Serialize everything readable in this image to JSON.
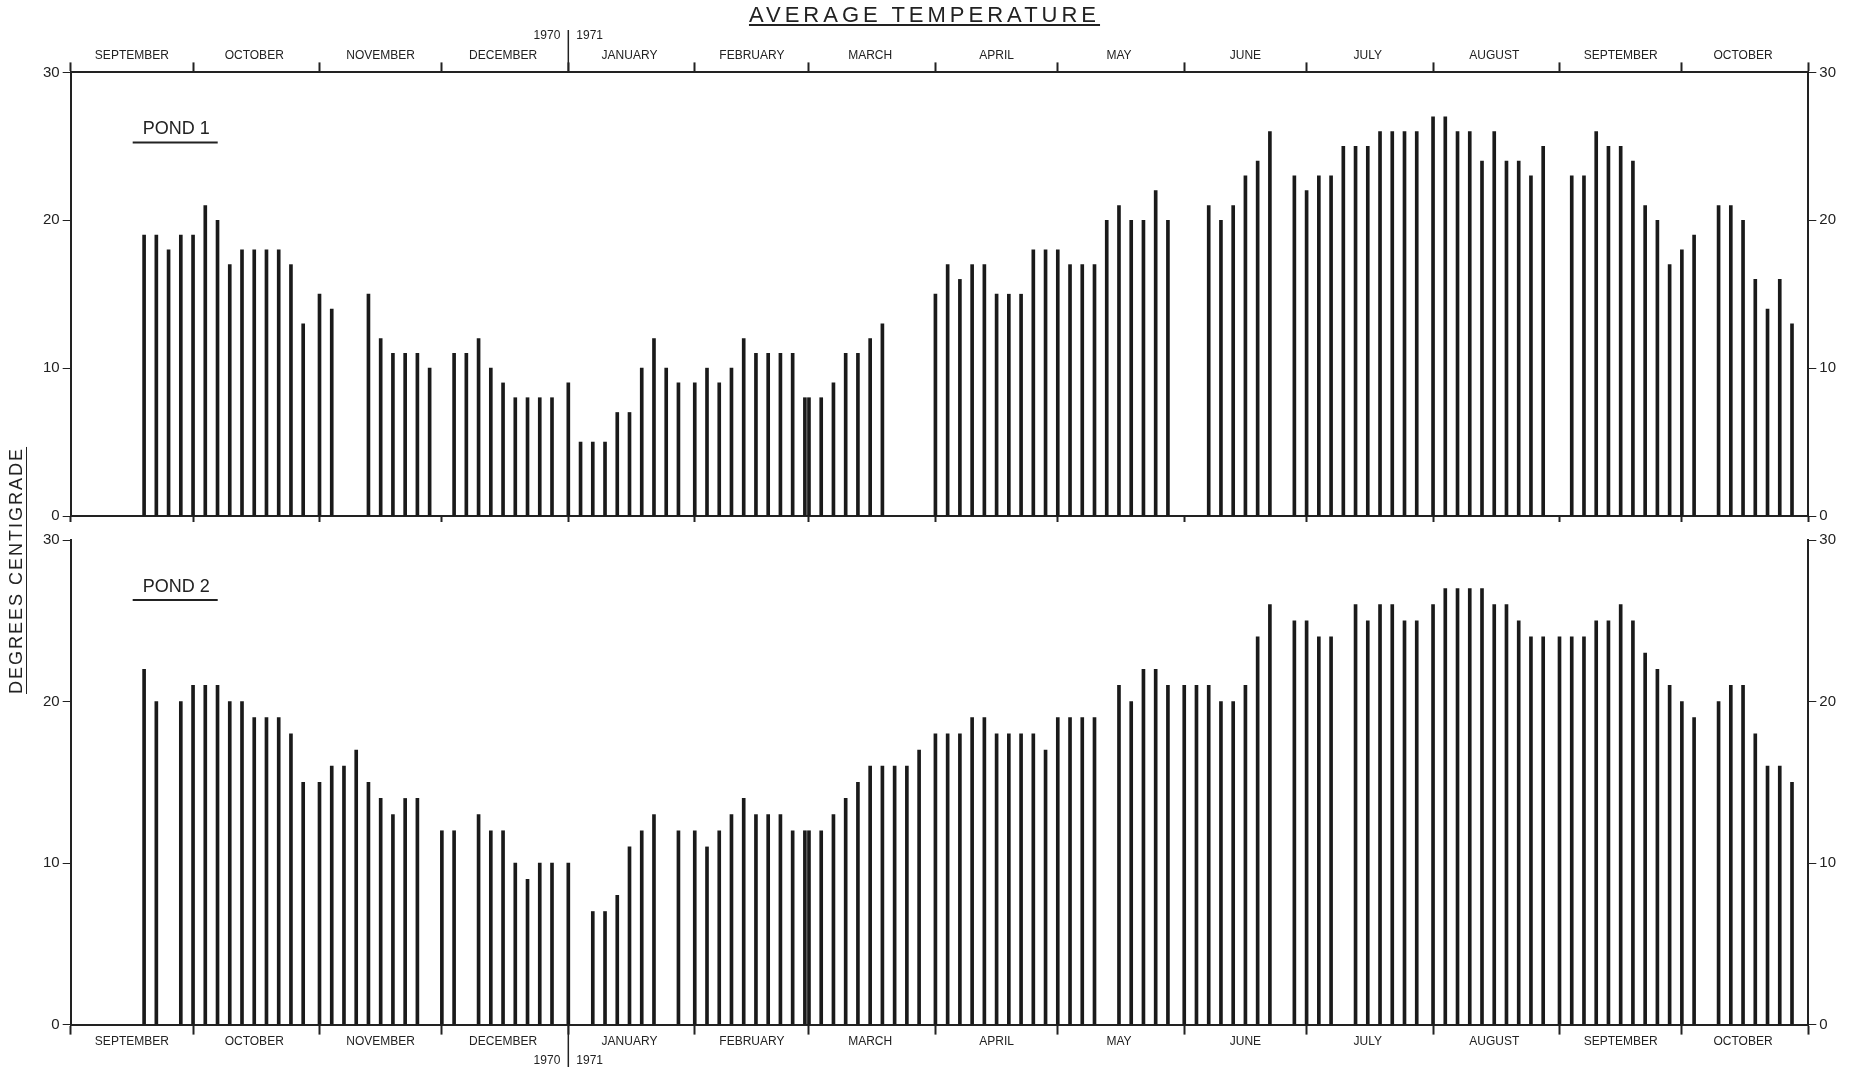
{
  "chart_data": [
    {
      "type": "bar",
      "title": "AVERAGE TEMPERATURE",
      "ylabel": "DEGREES CENTIGRADE",
      "subtitle": "POND 1",
      "x": [
        "1970-09-19",
        "1970-09-22",
        "1970-09-25",
        "1970-09-28",
        "1970-10-01",
        "1970-10-04",
        "1970-10-07",
        "1970-10-10",
        "1970-10-13",
        "1970-10-16",
        "1970-10-19",
        "1970-10-22",
        "1970-10-25",
        "1970-10-28",
        "1970-11-01",
        "1970-11-04",
        "1970-11-07",
        "1970-11-10",
        "1970-11-13",
        "1970-11-16",
        "1970-11-19",
        "1970-11-22",
        "1970-11-25",
        "1970-11-28",
        "1970-12-01",
        "1970-12-04",
        "1970-12-07",
        "1970-12-10",
        "1970-12-13",
        "1970-12-16",
        "1970-12-19",
        "1970-12-22",
        "1970-12-25",
        "1970-12-28",
        "1971-01-01",
        "1971-01-04",
        "1971-01-07",
        "1971-01-10",
        "1971-01-13",
        "1971-01-16",
        "1971-01-19",
        "1971-01-22",
        "1971-01-25",
        "1971-01-28",
        "1971-02-01",
        "1971-02-04",
        "1971-02-07",
        "1971-02-10",
        "1971-02-13",
        "1971-02-16",
        "1971-02-19",
        "1971-02-22",
        "1971-02-25",
        "1971-02-28",
        "1971-03-01",
        "1971-03-04",
        "1971-03-07",
        "1971-03-10",
        "1971-03-13",
        "1971-03-16",
        "1971-03-19",
        "1971-03-22",
        "1971-03-25",
        "1971-03-28",
        "1971-04-01",
        "1971-04-04",
        "1971-04-07",
        "1971-04-10",
        "1971-04-13",
        "1971-04-16",
        "1971-04-19",
        "1971-04-22",
        "1971-04-25",
        "1971-04-28",
        "1971-05-01",
        "1971-05-04",
        "1971-05-07",
        "1971-05-10",
        "1971-05-13",
        "1971-05-16",
        "1971-05-19",
        "1971-05-22",
        "1971-05-25",
        "1971-05-28",
        "1971-06-01",
        "1971-06-04",
        "1971-06-07",
        "1971-06-10",
        "1971-06-13",
        "1971-06-16",
        "1971-06-19",
        "1971-06-22",
        "1971-06-25",
        "1971-06-28",
        "1971-07-01",
        "1971-07-04",
        "1971-07-07",
        "1971-07-10",
        "1971-07-13",
        "1971-07-16",
        "1971-07-19",
        "1971-07-22",
        "1971-07-25",
        "1971-07-28",
        "1971-08-01",
        "1971-08-04",
        "1971-08-07",
        "1971-08-10",
        "1971-08-13",
        "1971-08-16",
        "1971-08-19",
        "1971-08-22",
        "1971-08-25",
        "1971-08-28",
        "1971-09-01",
        "1971-09-04",
        "1971-09-07",
        "1971-09-10",
        "1971-09-13",
        "1971-09-16",
        "1971-09-19",
        "1971-09-22",
        "1971-09-25",
        "1971-09-28",
        "1971-10-01",
        "1971-10-04",
        "1971-10-07",
        "1971-10-10",
        "1971-10-13",
        "1971-10-16",
        "1971-10-19",
        "1971-10-22",
        "1971-10-25",
        "1971-10-28"
      ],
      "xlim": [
        "1970-09-01",
        "1971-11-01"
      ],
      "xticks": [
        {
          "value": "1970-09-01",
          "label": null
        },
        {
          "value": "1970-09-16",
          "label": "SEPTEMBER"
        },
        {
          "value": "1970-10-01",
          "label": null
        },
        {
          "value": "1970-10-16",
          "label": "OCTOBER"
        },
        {
          "value": "1970-11-01",
          "label": null
        },
        {
          "value": "1970-11-16",
          "label": "NOVEMBER"
        },
        {
          "value": "1970-12-01",
          "label": null
        },
        {
          "value": "1970-12-16",
          "label": "DECEMBER"
        },
        {
          "value": "1971-01-01",
          "label": null
        },
        {
          "value": "1971-01-16",
          "label": "JANUARY"
        },
        {
          "value": "1971-02-01",
          "label": null
        },
        {
          "value": "1971-02-15",
          "label": "FEBRUARY"
        },
        {
          "value": "1971-03-01",
          "label": null
        },
        {
          "value": "1971-03-16",
          "label": "MARCH"
        },
        {
          "value": "1971-04-01",
          "label": null
        },
        {
          "value": "1971-04-16",
          "label": "APRIL"
        },
        {
          "value": "1971-05-01",
          "label": null
        },
        {
          "value": "1971-05-16",
          "label": "MAY"
        },
        {
          "value": "1971-06-01",
          "label": null
        },
        {
          "value": "1971-06-16",
          "label": "JUNE"
        },
        {
          "value": "1971-07-01",
          "label": null
        },
        {
          "value": "1971-07-16",
          "label": "JULY"
        },
        {
          "value": "1971-08-01",
          "label": null
        },
        {
          "value": "1971-08-16",
          "label": "AUGUST"
        },
        {
          "value": "1971-09-01",
          "label": null
        },
        {
          "value": "1971-09-16",
          "label": "SEPTEMBER"
        },
        {
          "value": "1971-10-01",
          "label": null
        },
        {
          "value": "1971-10-16",
          "label": "OCTOBER"
        },
        {
          "value": "1971-11-01",
          "label": null
        }
      ],
      "ylim": [
        0,
        30
      ],
      "yticks": [
        0,
        10,
        20,
        30
      ],
      "y2lim": [
        0,
        30
      ],
      "y2ticks": [
        0,
        10,
        20,
        30
      ],
      "annotations": [
        "1970",
        "1971"
      ],
      "series": [
        {
          "color": "#1a1a1a",
          "values": [
            19,
            19,
            18,
            19,
            19,
            21,
            20,
            17,
            18,
            18,
            18,
            18,
            17,
            13,
            15,
            14,
            null,
            null,
            15,
            12,
            11,
            11,
            11,
            10,
            null,
            11,
            11,
            12,
            10,
            9,
            8,
            8,
            8,
            8,
            9,
            5,
            5,
            5,
            7,
            7,
            10,
            12,
            10,
            9,
            9,
            10,
            9,
            10,
            12,
            11,
            11,
            11,
            11,
            8,
            8,
            8,
            9,
            11,
            11,
            12,
            13,
            null,
            null,
            null,
            15,
            17,
            16,
            17,
            17,
            15,
            15,
            15,
            18,
            18,
            18,
            17,
            17,
            17,
            20,
            21,
            20,
            20,
            22,
            20,
            null,
            null,
            21,
            20,
            21,
            23,
            24,
            26,
            null,
            23,
            22,
            23,
            23,
            25,
            25,
            25,
            26,
            26,
            26,
            26,
            27,
            27,
            26,
            26,
            24,
            26,
            24,
            24,
            23,
            25,
            null,
            23,
            23,
            26,
            25,
            25,
            24,
            21,
            20,
            17,
            18,
            19,
            null,
            21,
            21,
            20,
            16,
            14,
            16,
            13
          ]
        }
      ]
    },
    {
      "type": "bar",
      "subtitle": "POND 2",
      "x": [
        "1970-09-19",
        "1970-09-22",
        "1970-09-25",
        "1970-09-28",
        "1970-10-01",
        "1970-10-04",
        "1970-10-07",
        "1970-10-10",
        "1970-10-13",
        "1970-10-16",
        "1970-10-19",
        "1970-10-22",
        "1970-10-25",
        "1970-10-28",
        "1970-11-01",
        "1970-11-04",
        "1970-11-07",
        "1970-11-10",
        "1970-11-13",
        "1970-11-16",
        "1970-11-19",
        "1970-11-22",
        "1970-11-25",
        "1970-11-28",
        "1970-12-01",
        "1970-12-04",
        "1970-12-07",
        "1970-12-10",
        "1970-12-13",
        "1970-12-16",
        "1970-12-19",
        "1970-12-22",
        "1970-12-25",
        "1970-12-28",
        "1971-01-01",
        "1971-01-04",
        "1971-01-07",
        "1971-01-10",
        "1971-01-13",
        "1971-01-16",
        "1971-01-19",
        "1971-01-22",
        "1971-01-25",
        "1971-01-28",
        "1971-02-01",
        "1971-02-04",
        "1971-02-07",
        "1971-02-10",
        "1971-02-13",
        "1971-02-16",
        "1971-02-19",
        "1971-02-22",
        "1971-02-25",
        "1971-02-28",
        "1971-03-01",
        "1971-03-04",
        "1971-03-07",
        "1971-03-10",
        "1971-03-13",
        "1971-03-16",
        "1971-03-19",
        "1971-03-22",
        "1971-03-25",
        "1971-03-28",
        "1971-04-01",
        "1971-04-04",
        "1971-04-07",
        "1971-04-10",
        "1971-04-13",
        "1971-04-16",
        "1971-04-19",
        "1971-04-22",
        "1971-04-25",
        "1971-04-28",
        "1971-05-01",
        "1971-05-04",
        "1971-05-07",
        "1971-05-10",
        "1971-05-13",
        "1971-05-16",
        "1971-05-19",
        "1971-05-22",
        "1971-05-25",
        "1971-05-28",
        "1971-06-01",
        "1971-06-04",
        "1971-06-07",
        "1971-06-10",
        "1971-06-13",
        "1971-06-16",
        "1971-06-19",
        "1971-06-22",
        "1971-06-25",
        "1971-06-28",
        "1971-07-01",
        "1971-07-04",
        "1971-07-07",
        "1971-07-10",
        "1971-07-13",
        "1971-07-16",
        "1971-07-19",
        "1971-07-22",
        "1971-07-25",
        "1971-07-28",
        "1971-08-01",
        "1971-08-04",
        "1971-08-07",
        "1971-08-10",
        "1971-08-13",
        "1971-08-16",
        "1971-08-19",
        "1971-08-22",
        "1971-08-25",
        "1971-08-28",
        "1971-09-01",
        "1971-09-04",
        "1971-09-07",
        "1971-09-10",
        "1971-09-13",
        "1971-09-16",
        "1971-09-19",
        "1971-09-22",
        "1971-09-25",
        "1971-09-28",
        "1971-10-01",
        "1971-10-04",
        "1971-10-07",
        "1971-10-10",
        "1971-10-13",
        "1971-10-16",
        "1971-10-19",
        "1971-10-22",
        "1971-10-25",
        "1971-10-28"
      ],
      "xlim": [
        "1970-09-01",
        "1971-11-01"
      ],
      "xticks": [
        {
          "value": "1970-09-01",
          "label": null
        },
        {
          "value": "1970-09-16",
          "label": "SEPTEMBER"
        },
        {
          "value": "1970-10-01",
          "label": null
        },
        {
          "value": "1970-10-16",
          "label": "OCTOBER"
        },
        {
          "value": "1970-11-01",
          "label": null
        },
        {
          "value": "1970-11-16",
          "label": "NOVEMBER"
        },
        {
          "value": "1970-12-01",
          "label": null
        },
        {
          "value": "1970-12-16",
          "label": "DECEMBER"
        },
        {
          "value": "1971-01-01",
          "label": null
        },
        {
          "value": "1971-01-16",
          "label": "JANUARY"
        },
        {
          "value": "1971-02-01",
          "label": null
        },
        {
          "value": "1971-02-15",
          "label": "FEBRUARY"
        },
        {
          "value": "1971-03-01",
          "label": null
        },
        {
          "value": "1971-03-16",
          "label": "MARCH"
        },
        {
          "value": "1971-04-01",
          "label": null
        },
        {
          "value": "1971-04-16",
          "label": "APRIL"
        },
        {
          "value": "1971-05-01",
          "label": null
        },
        {
          "value": "1971-05-16",
          "label": "MAY"
        },
        {
          "value": "1971-06-01",
          "label": null
        },
        {
          "value": "1971-06-16",
          "label": "JUNE"
        },
        {
          "value": "1971-07-01",
          "label": null
        },
        {
          "value": "1971-07-16",
          "label": "JULY"
        },
        {
          "value": "1971-08-01",
          "label": null
        },
        {
          "value": "1971-08-16",
          "label": "AUGUST"
        },
        {
          "value": "1971-09-01",
          "label": null
        },
        {
          "value": "1971-09-16",
          "label": "SEPTEMBER"
        },
        {
          "value": "1971-10-01",
          "label": null
        },
        {
          "value": "1971-10-16",
          "label": "OCTOBER"
        },
        {
          "value": "1971-11-01",
          "label": null
        }
      ],
      "ylim": [
        0,
        30
      ],
      "yticks": [
        0,
        10,
        20,
        30
      ],
      "y2lim": [
        0,
        30
      ],
      "y2ticks": [
        0,
        10,
        20,
        30
      ],
      "annotations": [
        "1970",
        "1971"
      ],
      "series": [
        {
          "color": "#1a1a1a",
          "values": [
            22,
            20,
            null,
            20,
            21,
            21,
            21,
            20,
            20,
            19,
            19,
            19,
            18,
            15,
            15,
            16,
            16,
            17,
            15,
            14,
            13,
            14,
            14,
            null,
            12,
            12,
            null,
            13,
            12,
            12,
            10,
            9,
            10,
            10,
            10,
            null,
            7,
            7,
            8,
            11,
            12,
            13,
            null,
            12,
            12,
            11,
            12,
            13,
            14,
            13,
            13,
            13,
            12,
            12,
            12,
            12,
            13,
            14,
            15,
            16,
            16,
            16,
            16,
            17,
            18,
            18,
            18,
            19,
            19,
            18,
            18,
            18,
            18,
            17,
            19,
            19,
            19,
            19,
            null,
            21,
            20,
            22,
            22,
            21,
            21,
            21,
            21,
            20,
            20,
            21,
            24,
            26,
            null,
            25,
            25,
            24,
            24,
            null,
            26,
            25,
            26,
            26,
            25,
            25,
            26,
            27,
            27,
            27,
            27,
            26,
            26,
            25,
            24,
            24,
            24,
            24,
            24,
            25,
            25,
            26,
            25,
            23,
            22,
            21,
            20,
            19,
            null,
            20,
            21,
            21,
            18,
            16,
            16,
            15
          ]
        }
      ]
    }
  ]
}
